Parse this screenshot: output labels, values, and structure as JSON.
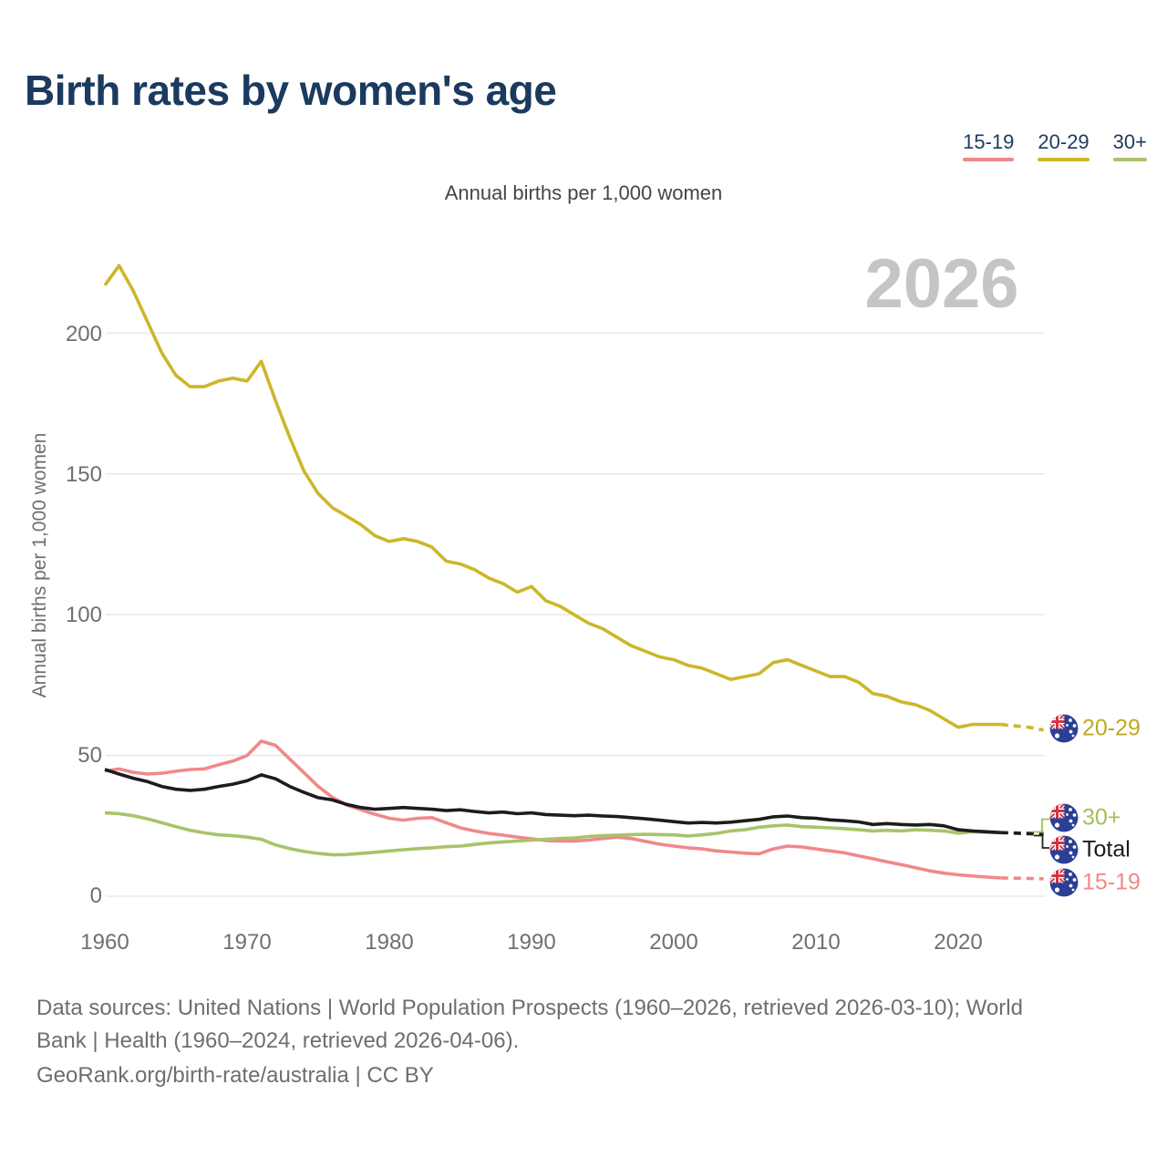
{
  "title": "Birth rates by women's age",
  "subtitle": "Annual births per 1,000 women",
  "watermark_year": "2026",
  "legend": {
    "items": [
      {
        "label": "15-19",
        "color": "#f0888b"
      },
      {
        "label": "20-29",
        "color": "#cdb62b"
      },
      {
        "label": "30+",
        "color": "#a8c36b"
      }
    ]
  },
  "end_labels": [
    {
      "label": "20-29",
      "color": "#bfa922"
    },
    {
      "label": "30+",
      "color": "#a3bf5c"
    },
    {
      "label": "Total",
      "color": "#1c1c1c"
    },
    {
      "label": "15-19",
      "color": "#f0888b"
    }
  ],
  "flag": {
    "country": "australia"
  },
  "footer": {
    "sources_line1": "Data sources: United Nations | World Population Prospects (1960–2026, retrieved 2026-03-10); World",
    "sources_line2": "Bank | Health (1960–2024, retrieved 2026-04-06).",
    "credit_line": "GeoRank.org/birth-rate/australia | CC BY"
  },
  "chart_data": {
    "type": "line",
    "title": "Birth rates by women's age",
    "ylabel": "Annual births per 1,000 women",
    "xlabel": "",
    "xlim": [
      1960,
      2026
    ],
    "ylim": [
      0,
      225
    ],
    "grid": "horizontal",
    "legend_position": "top-right",
    "projection_dashed_from": 2023,
    "x_ticks": [
      "1960",
      "1970",
      "1980",
      "1990",
      "2000",
      "2010",
      "2020"
    ],
    "x_tick_years": [
      1960,
      1970,
      1980,
      1990,
      2000,
      2010,
      2020
    ],
    "y_ticks": [
      "0",
      "50",
      "100",
      "150",
      "200"
    ],
    "y_tick_values": [
      0,
      50,
      100,
      150,
      200
    ],
    "years_start": 1960,
    "years_end": 2026,
    "series": [
      {
        "name": "20-29",
        "color": "#cdb62b",
        "end_value": 59,
        "values": [
          217,
          224,
          215,
          204,
          193,
          185,
          181,
          181,
          183,
          184,
          183,
          190,
          176,
          163,
          151,
          143,
          138,
          135,
          132,
          128,
          126,
          127,
          126,
          124,
          119,
          118,
          116,
          113,
          111,
          108,
          110,
          105,
          103,
          100,
          97,
          95,
          92,
          89,
          87,
          85,
          84,
          82,
          81,
          79,
          77,
          78,
          79,
          83,
          84,
          82,
          80,
          78,
          78,
          76,
          72,
          71,
          69,
          68,
          66,
          63,
          60,
          61,
          61,
          61,
          60.5,
          60,
          59
        ]
      },
      {
        "name": "15-19",
        "color": "#f0888b",
        "end_value": 6.2,
        "values": [
          44.5,
          45.2,
          44,
          43.4,
          43.7,
          44.4,
          45,
          45.2,
          46.7,
          48,
          50,
          55.1,
          53.6,
          48.7,
          43.9,
          39,
          35.1,
          32.4,
          30.7,
          29.1,
          27.7,
          27,
          27.7,
          27.9,
          26.1,
          24.3,
          23.2,
          22.3,
          21.7,
          21,
          20.4,
          19.8,
          19.6,
          19.6,
          19.9,
          20.5,
          21,
          20.5,
          19.5,
          18.5,
          17.8,
          17.2,
          16.8,
          16.1,
          15.7,
          15.3,
          15.1,
          16.8,
          17.8,
          17.5,
          16.8,
          16.1,
          15.4,
          14.3,
          13.3,
          12.2,
          11.2,
          10.1,
          9,
          8.2,
          7.6,
          7.2,
          6.8,
          6.5,
          6.4,
          6.3,
          6.2
        ]
      },
      {
        "name": "30+",
        "color": "#a8c36b",
        "end_value": 22.6,
        "values": [
          29.6,
          29.3,
          28.6,
          27.5,
          26.1,
          24.7,
          23.4,
          22.5,
          21.8,
          21.5,
          21,
          20.2,
          18.2,
          16.9,
          15.9,
          15.2,
          14.7,
          14.8,
          15.2,
          15.6,
          16.1,
          16.5,
          16.9,
          17.2,
          17.6,
          17.8,
          18.4,
          18.9,
          19.3,
          19.6,
          19.9,
          20.2,
          20.5,
          20.7,
          21.2,
          21.5,
          21.7,
          21.9,
          22,
          21.9,
          21.8,
          21.4,
          21.8,
          22.3,
          23.2,
          23.6,
          24.5,
          25,
          25.3,
          24.7,
          24.5,
          24.3,
          24,
          23.6,
          23.2,
          23.4,
          23.2,
          23.6,
          23.4,
          23.2,
          22.4,
          22.9,
          22.7,
          22.5,
          22.5,
          22.5,
          22.6
        ]
      },
      {
        "name": "Total",
        "color": "#1c1c1c",
        "end_value": 22,
        "values": [
          45,
          43.4,
          41.9,
          40.7,
          39,
          38,
          37.6,
          38,
          39,
          39.8,
          41,
          43.1,
          41.7,
          39,
          36.9,
          35,
          34.2,
          32.6,
          31.5,
          30.9,
          31.2,
          31.5,
          31.2,
          30.9,
          30.4,
          30.7,
          30.1,
          29.6,
          29.9,
          29.3,
          29.6,
          29,
          28.8,
          28.6,
          28.8,
          28.5,
          28.3,
          27.9,
          27.5,
          27,
          26.5,
          26,
          26.2,
          26,
          26.3,
          26.8,
          27.3,
          28.2,
          28.5,
          27.9,
          27.7,
          27.1,
          26.8,
          26.4,
          25.5,
          25.8,
          25.5,
          25.3,
          25.5,
          25,
          23.6,
          23.2,
          22.9,
          22.6,
          22.4,
          22.2,
          22
        ]
      }
    ]
  }
}
